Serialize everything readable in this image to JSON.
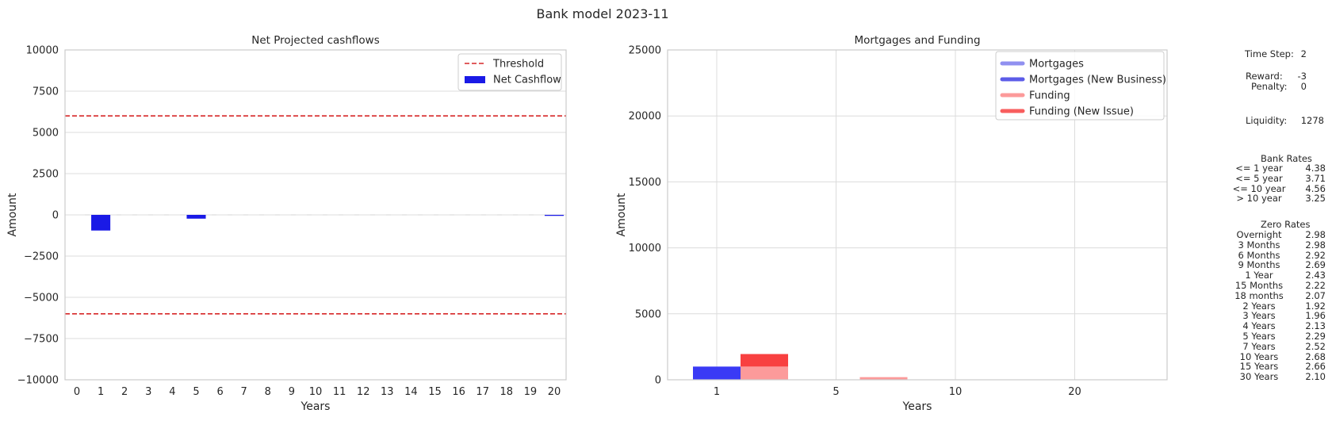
{
  "figure": {
    "title": "Bank model 2023-11"
  },
  "chart_data": [
    {
      "type": "bar",
      "title": "Net Projected cashflows",
      "xlabel": "Years",
      "ylabel": "Amount",
      "ylim": [
        -10000,
        10000
      ],
      "yticks": [
        10000,
        7500,
        5000,
        2500,
        0,
        -2500,
        -5000,
        -7500,
        -10000
      ],
      "ytick_labels": [
        "10000",
        "7500",
        "5000",
        "2500",
        "0",
        "−2500",
        "−5000",
        "−7500",
        "−10000"
      ],
      "categories": [
        "0",
        "1",
        "2",
        "3",
        "4",
        "5",
        "6",
        "7",
        "8",
        "9",
        "10",
        "11",
        "12",
        "13",
        "14",
        "15",
        "16",
        "17",
        "18",
        "19",
        "20"
      ],
      "series": [
        {
          "name": "Net Cashflow",
          "color": "#1a1ae6",
          "values": [
            0,
            -950,
            0,
            0,
            0,
            -230,
            0,
            0,
            0,
            0,
            0,
            0,
            0,
            0,
            0,
            0,
            0,
            0,
            0,
            0,
            -60
          ]
        }
      ],
      "thresholds": {
        "name": "Threshold",
        "color": "#d62728",
        "values": [
          6000,
          -6000
        ]
      },
      "grid": "horizontal",
      "legend": "top-right"
    },
    {
      "type": "bar",
      "title": "Mortgages and Funding",
      "xlabel": "Years",
      "ylabel": "Amount",
      "ylim": [
        0,
        25000
      ],
      "yticks": [
        0,
        5000,
        10000,
        15000,
        20000,
        25000
      ],
      "ytick_labels": [
        "0",
        "5000",
        "10000",
        "15000",
        "20000",
        "25000"
      ],
      "xlim": [
        -1,
        24
      ],
      "xticks": [
        1,
        5,
        10,
        20
      ],
      "xtick_labels": [
        "1",
        "5",
        "10",
        "20"
      ],
      "series": [
        {
          "name": "Mortgages",
          "color": "#9090f0",
          "x": [
            1,
            5,
            10,
            20
          ],
          "values": [
            1000,
            0,
            0,
            0
          ]
        },
        {
          "name": "Mortgages (New Business)",
          "color": "#5c5ce8",
          "x": [
            1,
            5,
            10,
            20
          ],
          "values": [
            0,
            0,
            0,
            0
          ]
        },
        {
          "name": "Funding",
          "color": "#fc9a9a",
          "x": [
            3,
            7,
            13,
            23
          ],
          "values": [
            1000,
            200,
            0,
            0
          ]
        },
        {
          "name": "Funding (New Issue)",
          "color": "#f85d5d",
          "x": [
            3,
            7,
            13,
            23
          ],
          "values": [
            950,
            0,
            0,
            0
          ]
        }
      ],
      "grid": "both",
      "legend": "top-right"
    }
  ],
  "info": {
    "time_step_label": "Time Step:",
    "time_step": "2",
    "reward_label": "Reward:",
    "reward": "-3",
    "penalty_label": "Penalty:",
    "penalty": "0",
    "liquidity_label": "Liquidity:",
    "liquidity": "1278",
    "bank_rates_title": "Bank Rates",
    "bank_rates": [
      {
        "label": "<= 1 year",
        "value": "4.38"
      },
      {
        "label": "<= 5 year",
        "value": "3.71"
      },
      {
        "label": "<= 10 year",
        "value": "4.56"
      },
      {
        "label": "> 10 year",
        "value": "3.25"
      }
    ],
    "zero_rates_title": "Zero Rates",
    "zero_rates": [
      {
        "label": "Overnight",
        "value": "2.98"
      },
      {
        "label": "3 Months",
        "value": "2.98"
      },
      {
        "label": "6 Months",
        "value": "2.92"
      },
      {
        "label": "9 Months",
        "value": "2.69"
      },
      {
        "label": "1 Year",
        "value": "2.43"
      },
      {
        "label": "15 Months",
        "value": "2.22"
      },
      {
        "label": "18 months",
        "value": "2.07"
      },
      {
        "label": "2 Years",
        "value": "1.92"
      },
      {
        "label": "3 Years",
        "value": "1.96"
      },
      {
        "label": "4 Years",
        "value": "2.13"
      },
      {
        "label": "5 Years",
        "value": "2.29"
      },
      {
        "label": "7 Years",
        "value": "2.52"
      },
      {
        "label": "10 Years",
        "value": "2.68"
      },
      {
        "label": "15 Years",
        "value": "2.66"
      },
      {
        "label": "30 Years",
        "value": "2.10"
      }
    ]
  }
}
